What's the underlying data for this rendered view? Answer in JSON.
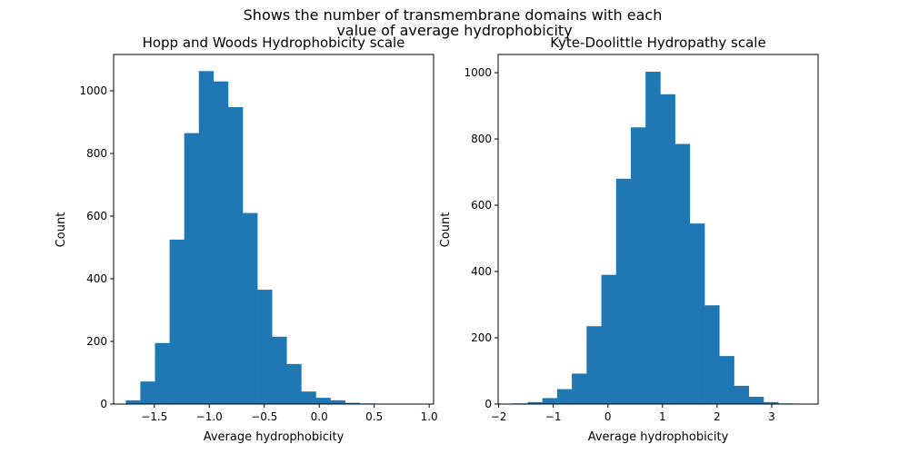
{
  "figure": {
    "suptitle_line1": "Shows the number of transmembrane domains with each",
    "suptitle_line2": "value of average hydrophobicity"
  },
  "colors": {
    "bar": "#1f77b4",
    "axes": "#000000",
    "background": "#ffffff"
  },
  "chart_data": [
    {
      "type": "bar",
      "subtype": "histogram",
      "title": "Hopp and Woods Hydrophobicity scale",
      "xlabel": "Average hydrophobicity",
      "ylabel": "Count",
      "xlim": [
        -1.87,
        1.04
      ],
      "ylim": [
        0,
        1116
      ],
      "grid": false,
      "bin_edges": [
        -1.76,
        -1.627,
        -1.494,
        -1.361,
        -1.228,
        -1.095,
        -0.962,
        -0.829,
        -0.696,
        -0.563,
        -0.43,
        -0.297,
        -0.164,
        -0.031,
        0.102,
        0.235,
        0.368,
        0.501,
        0.634,
        0.767,
        0.9
      ],
      "values": [
        12,
        72,
        195,
        525,
        865,
        1063,
        1030,
        948,
        610,
        365,
        215,
        128,
        40,
        20,
        12,
        4,
        2,
        1,
        1,
        1
      ],
      "xticks": [
        {
          "value": -1.5,
          "label": "−1.5"
        },
        {
          "value": -1.0,
          "label": "−1.0"
        },
        {
          "value": -0.5,
          "label": "−0.5"
        },
        {
          "value": 0.0,
          "label": "0.0"
        },
        {
          "value": 0.5,
          "label": "0.5"
        },
        {
          "value": 1.0,
          "label": "1.0"
        }
      ],
      "yticks": [
        {
          "value": 0,
          "label": "0"
        },
        {
          "value": 200,
          "label": "200"
        },
        {
          "value": 400,
          "label": "400"
        },
        {
          "value": 600,
          "label": "600"
        },
        {
          "value": 800,
          "label": "800"
        },
        {
          "value": 1000,
          "label": "1000"
        }
      ]
    },
    {
      "type": "bar",
      "subtype": "histogram",
      "title": "Kyte-Doolittle Hydropathy scale",
      "xlabel": "Average hydrophobicity",
      "ylabel": "Count",
      "xlim": [
        -2.01,
        3.85
      ],
      "ylim": [
        0,
        1055
      ],
      "grid": false,
      "bin_edges": [
        -1.74,
        -1.47,
        -1.2,
        -0.93,
        -0.66,
        -0.39,
        -0.12,
        0.15,
        0.42,
        0.69,
        0.96,
        1.23,
        1.5,
        1.77,
        2.04,
        2.31,
        2.58,
        2.85,
        3.12,
        3.39,
        3.66
      ],
      "values": [
        2,
        6,
        18,
        45,
        92,
        235,
        390,
        680,
        835,
        1003,
        935,
        785,
        545,
        298,
        145,
        55,
        22,
        6,
        2,
        1
      ],
      "xticks": [
        {
          "value": -2,
          "label": "−2"
        },
        {
          "value": -1,
          "label": "−1"
        },
        {
          "value": 0,
          "label": "0"
        },
        {
          "value": 1,
          "label": "1"
        },
        {
          "value": 2,
          "label": "2"
        },
        {
          "value": 3,
          "label": "3"
        }
      ],
      "yticks": [
        {
          "value": 0,
          "label": "0"
        },
        {
          "value": 200,
          "label": "200"
        },
        {
          "value": 400,
          "label": "400"
        },
        {
          "value": 600,
          "label": "600"
        },
        {
          "value": 800,
          "label": "800"
        },
        {
          "value": 1000,
          "label": "1000"
        }
      ]
    }
  ]
}
